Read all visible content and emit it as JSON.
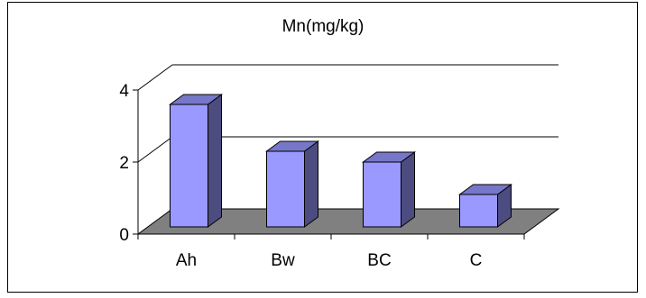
{
  "chart_data": {
    "type": "bar",
    "style": "3d-clustered-column",
    "title": "Mn(mg/kg)",
    "categories": [
      "Ah",
      "Bw",
      "BC",
      "C"
    ],
    "values": [
      3.4,
      2.1,
      1.8,
      0.9
    ],
    "ylim": [
      0,
      4
    ],
    "yticks": [
      0,
      2,
      4
    ],
    "grid": true,
    "legend": "none",
    "colors": {
      "bar_front": "#9999ff",
      "bar_side": "#4c4c80",
      "bar_top": "#7777c9",
      "floor": "#808080",
      "gridline": "#000000"
    }
  }
}
